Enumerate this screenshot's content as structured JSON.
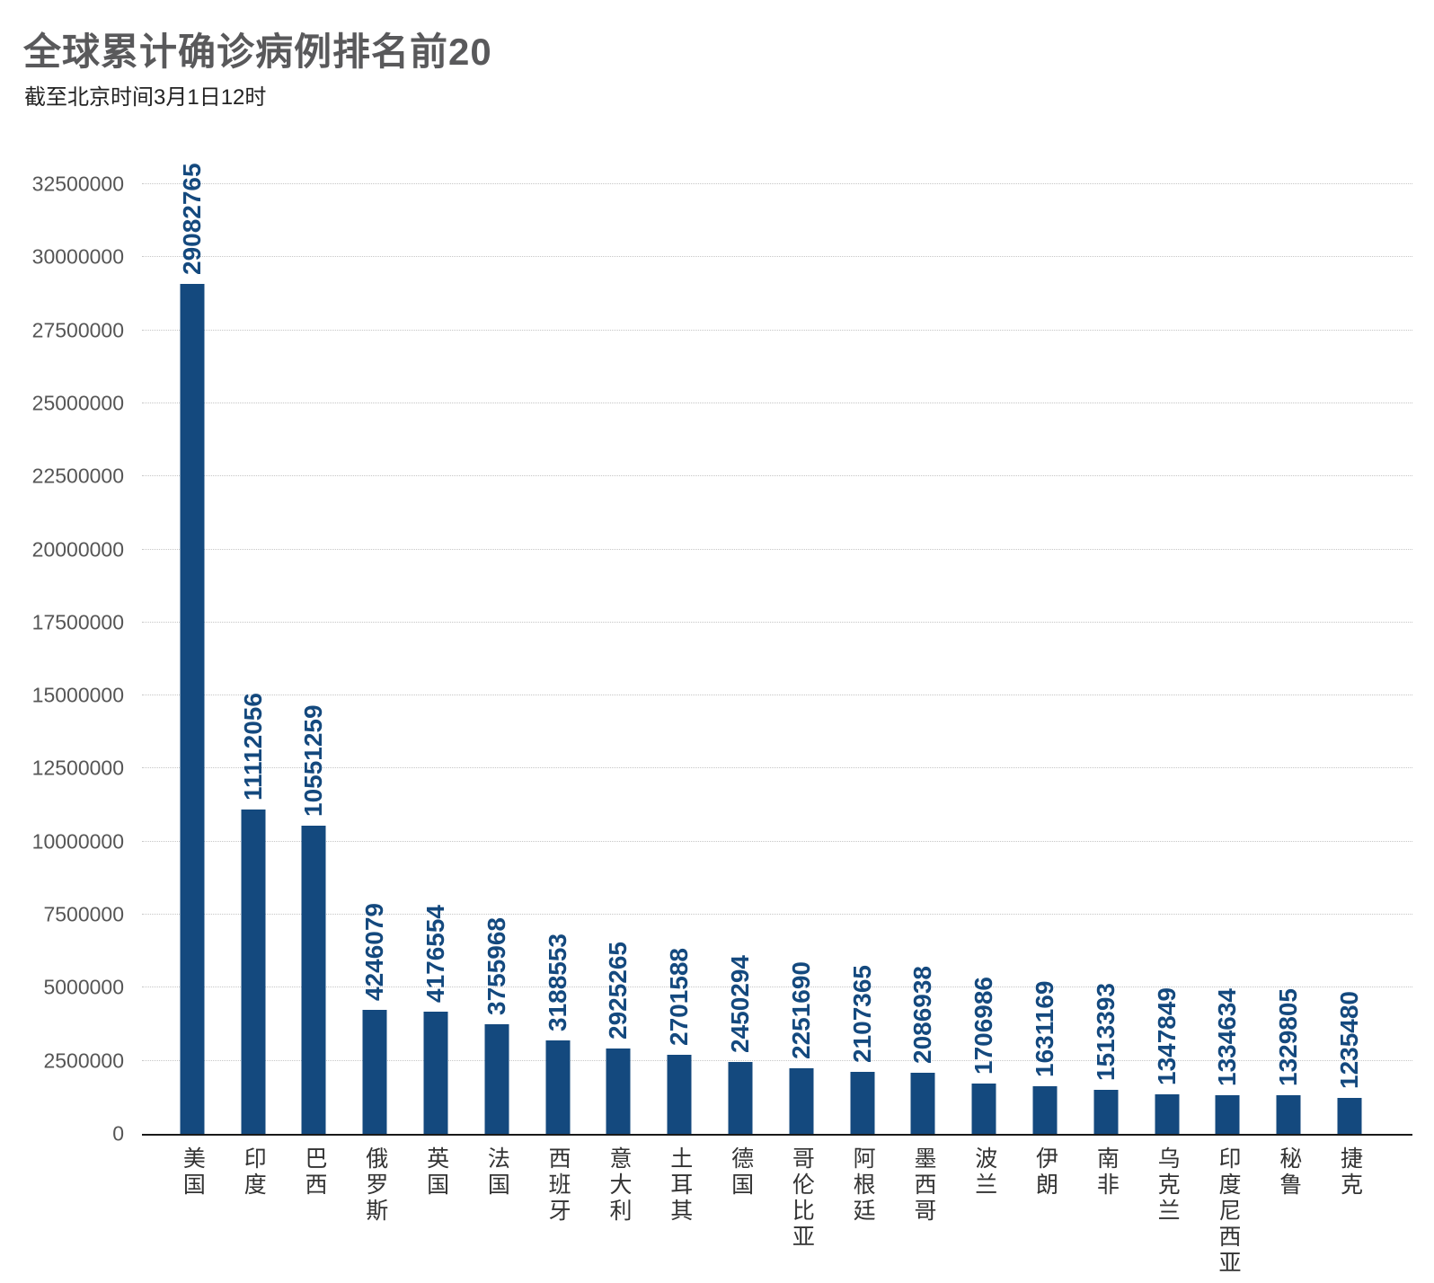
{
  "header": {
    "title": "全球累计确诊病例排名前20",
    "subtitle": "截至北京时间3月1日12时"
  },
  "chart_data": {
    "type": "bar",
    "title": "全球累计确诊病例排名前20",
    "subtitle": "截至北京时间3月1日12时",
    "categories": [
      "美国",
      "印度",
      "巴西",
      "俄罗斯",
      "英国",
      "法国",
      "西班牙",
      "意大利",
      "土耳其",
      "德国",
      "哥伦比亚",
      "阿根廷",
      "墨西哥",
      "波兰",
      "伊朗",
      "南非",
      "乌克兰",
      "印度尼西亚",
      "秘鲁",
      "捷克"
    ],
    "values": [
      29082765,
      11112056,
      10551259,
      4246079,
      4176554,
      3755968,
      3188553,
      2925265,
      2701588,
      2450294,
      2251690,
      2107365,
      2086938,
      1706986,
      1631169,
      1513393,
      1347849,
      1334634,
      1329805,
      1235480
    ],
    "yticks": [
      0,
      2500000,
      5000000,
      7500000,
      10000000,
      12500000,
      15000000,
      17500000,
      20000000,
      22500000,
      25000000,
      27500000,
      30000000,
      32500000
    ],
    "ylim": [
      0,
      32500000
    ],
    "xlabel": "",
    "ylabel": "",
    "grid": "horizontal-dotted",
    "legend": "none",
    "bar_color": "#14497e",
    "value_label_color": "#14497e",
    "axis_line_color": "#1a1a1a"
  }
}
